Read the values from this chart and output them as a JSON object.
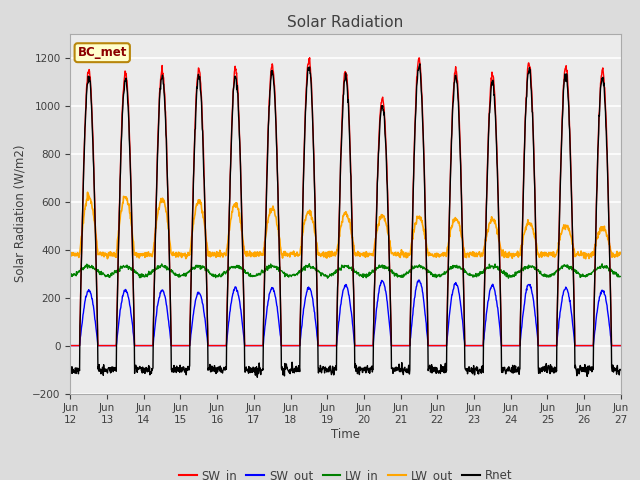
{
  "title": "Solar Radiation",
  "ylabel": "Solar Radiation (W/m2)",
  "xlabel": "Time",
  "ylim": [
    -200,
    1300
  ],
  "yticks": [
    -200,
    0,
    200,
    400,
    600,
    800,
    1000,
    1200
  ],
  "station_label": "BC_met",
  "x_tick_labels": [
    "Jun\n12",
    "Jun\n13",
    "Jun\n14",
    "Jun\n15",
    "Jun\n16",
    "Jun\n17",
    "Jun\n18",
    "Jun\n19",
    "Jun\n20",
    "Jun\n21",
    "Jun\n22",
    "Jun\n23",
    "Jun\n24",
    "Jun\n25",
    "Jun\n26",
    "Jun\n27"
  ],
  "x_tick_labels_compact": [
    "Jun 12",
    "Jun 13",
    "Jun 14",
    "Jun 15",
    "Jun 16",
    "Jun 17",
    "Jun 18",
    "Jun 19",
    "Jun 20",
    "Jun 21",
    "Jun 22",
    "Jun 23",
    "Jun 24",
    "Jun 25",
    "Jun 26",
    "Jun 27"
  ],
  "colors_SW_in": "red",
  "colors_SW_out": "blue",
  "colors_LW_in": "green",
  "colors_LW_out": "orange",
  "colors_Rnet": "black",
  "legend_entries": [
    "SW_in",
    "SW_out",
    "LW_in",
    "LW_out",
    "Rnet"
  ],
  "background_color": "#dcdcdc",
  "plot_bg_color": "#ebebeb",
  "n_days": 15,
  "pts_per_day": 96,
  "day_peaks_SW": [
    1150,
    1140,
    1150,
    1150,
    1150,
    1170,
    1190,
    1150,
    1030,
    1190,
    1150,
    1130,
    1180,
    1160,
    1150
  ],
  "day_peaks_SW_out": [
    230,
    230,
    230,
    220,
    240,
    240,
    240,
    250,
    270,
    270,
    260,
    250,
    255,
    240,
    230
  ]
}
